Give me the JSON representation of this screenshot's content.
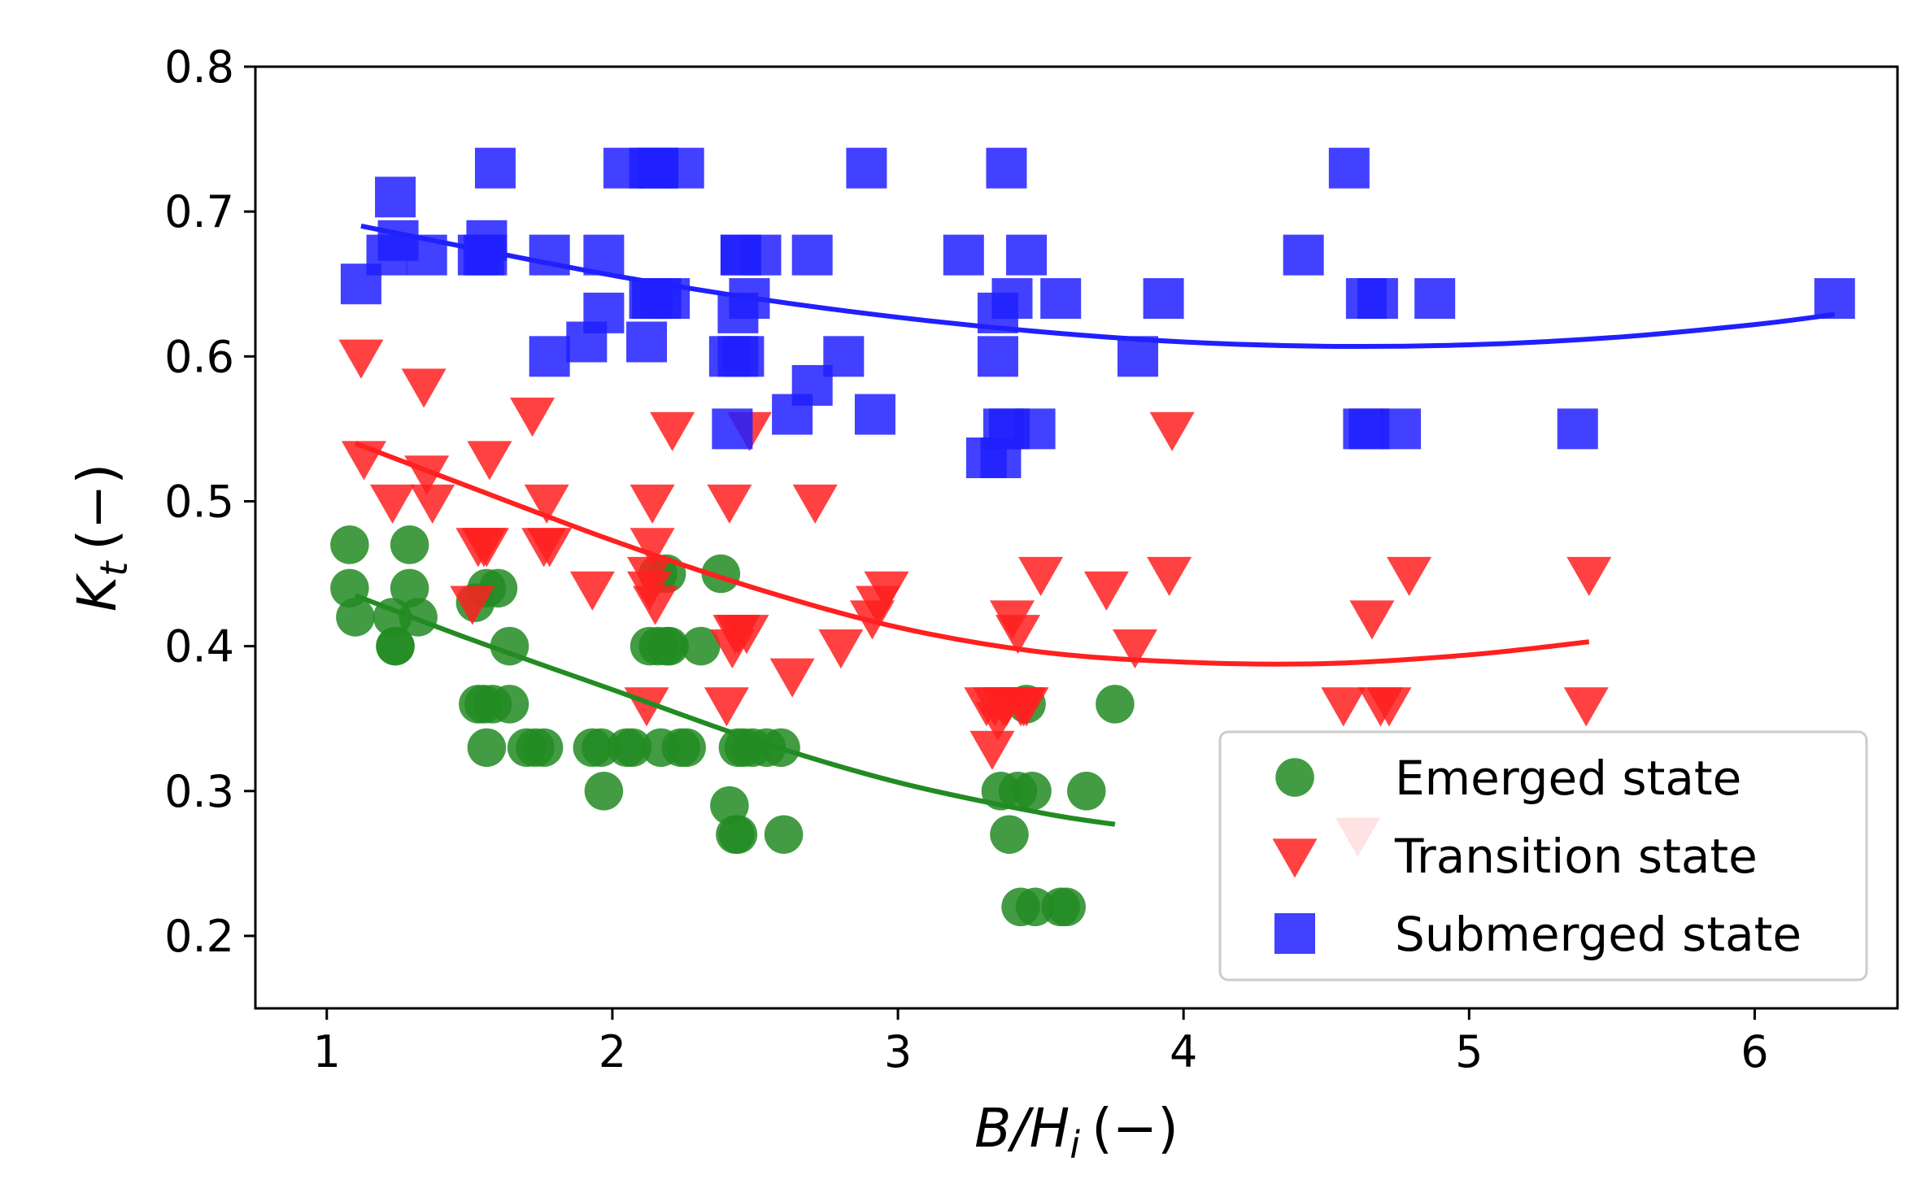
{
  "chart_data": {
    "type": "scatter",
    "title": "",
    "xlabel": "B/H_i (−)",
    "xlabel_base": "B/H",
    "xlabel_sub": "i",
    "xlabel_unit": "(−)",
    "ylabel": "K_t (−)",
    "ylabel_base": "K",
    "ylabel_sub": "t",
    "ylabel_unit": "(−)",
    "xlim": [
      0.75,
      6.5
    ],
    "ylim": [
      0.15,
      0.8
    ],
    "xticks": [
      1,
      2,
      3,
      4,
      5,
      6
    ],
    "xtick_labels": [
      "1",
      "2",
      "3",
      "4",
      "5",
      "6"
    ],
    "yticks": [
      0.2,
      0.3,
      0.4,
      0.5,
      0.6,
      0.7,
      0.8
    ],
    "ytick_labels": [
      "0.2",
      "0.3",
      "0.4",
      "0.5",
      "0.6",
      "0.7",
      "0.8"
    ],
    "grid": false,
    "legend_position": "bottom-right",
    "series": [
      {
        "name": "Emerged state",
        "marker": "circle",
        "color": "#228B22",
        "x": [
          1.08,
          1.08,
          1.1,
          1.23,
          1.24,
          1.24,
          1.29,
          1.29,
          1.32,
          1.52,
          1.53,
          1.55,
          1.56,
          1.56,
          1.58,
          1.6,
          1.64,
          1.64,
          1.7,
          1.73,
          1.76,
          1.93,
          1.96,
          1.97,
          2.05,
          2.07,
          2.13,
          2.16,
          2.16,
          2.17,
          2.19,
          2.19,
          2.2,
          2.24,
          2.26,
          2.31,
          2.38,
          2.41,
          2.43,
          2.44,
          2.44,
          2.46,
          2.49,
          2.54,
          2.59,
          2.6,
          3.36,
          3.39,
          3.42,
          3.43,
          3.45,
          3.47,
          3.48,
          3.57,
          3.59,
          3.66,
          3.76
        ],
        "y": [
          0.47,
          0.44,
          0.42,
          0.42,
          0.4,
          0.4,
          0.47,
          0.44,
          0.42,
          0.43,
          0.36,
          0.36,
          0.44,
          0.33,
          0.36,
          0.44,
          0.4,
          0.36,
          0.33,
          0.33,
          0.33,
          0.33,
          0.33,
          0.3,
          0.33,
          0.33,
          0.4,
          0.45,
          0.4,
          0.33,
          0.4,
          0.45,
          0.4,
          0.33,
          0.33,
          0.4,
          0.45,
          0.29,
          0.27,
          0.27,
          0.33,
          0.33,
          0.33,
          0.33,
          0.33,
          0.27,
          0.3,
          0.27,
          0.3,
          0.22,
          0.36,
          0.3,
          0.22,
          0.22,
          0.22,
          0.3,
          0.36
        ],
        "fit_x_range": [
          1.1,
          3.76
        ],
        "fit_x": [
          1.1,
          1.5,
          2.0,
          2.5,
          3.0,
          3.5,
          3.76
        ],
        "fit_y": [
          0.435,
          0.405,
          0.37,
          0.335,
          0.306,
          0.285,
          0.277
        ]
      },
      {
        "name": "Transition state",
        "marker": "triangle-down",
        "color": "#FF2020",
        "x": [
          1.12,
          1.13,
          1.23,
          1.34,
          1.35,
          1.37,
          1.51,
          1.53,
          1.55,
          1.56,
          1.57,
          1.72,
          1.76,
          1.77,
          1.78,
          1.93,
          2.12,
          2.13,
          2.13,
          2.14,
          2.14,
          2.15,
          2.21,
          2.4,
          2.41,
          2.42,
          2.43,
          2.44,
          2.47,
          2.48,
          2.63,
          2.71,
          2.8,
          2.91,
          2.93,
          2.96,
          3.31,
          3.33,
          3.34,
          3.35,
          3.37,
          3.38,
          3.4,
          3.42,
          3.43,
          3.44,
          3.45,
          3.5,
          3.73,
          3.83,
          3.95,
          3.96,
          4.56,
          4.61,
          4.66,
          4.69,
          4.72,
          4.79,
          5.41,
          5.42
        ],
        "y": [
          0.6,
          0.53,
          0.5,
          0.58,
          0.52,
          0.5,
          0.43,
          0.47,
          0.47,
          0.47,
          0.53,
          0.56,
          0.47,
          0.5,
          0.47,
          0.44,
          0.36,
          0.44,
          0.45,
          0.47,
          0.5,
          0.43,
          0.55,
          0.36,
          0.5,
          0.4,
          0.41,
          0.41,
          0.41,
          0.55,
          0.38,
          0.5,
          0.4,
          0.42,
          0.43,
          0.44,
          0.36,
          0.33,
          0.36,
          0.35,
          0.36,
          0.36,
          0.42,
          0.41,
          0.36,
          0.36,
          0.36,
          0.45,
          0.44,
          0.4,
          0.45,
          0.55,
          0.36,
          0.27,
          0.42,
          0.36,
          0.36,
          0.45,
          0.36,
          0.45
        ],
        "fit_x_range": [
          1.1,
          5.42
        ],
        "fit_x": [
          1.1,
          1.5,
          2.0,
          2.5,
          3.0,
          3.5,
          4.0,
          4.5,
          5.0,
          5.42
        ],
        "fit_y": [
          0.54,
          0.51,
          0.473,
          0.44,
          0.413,
          0.396,
          0.389,
          0.388,
          0.394,
          0.403
        ]
      },
      {
        "name": "Submerged state",
        "marker": "square",
        "color": "#2020FF",
        "x": [
          1.12,
          1.21,
          1.24,
          1.25,
          1.35,
          1.53,
          1.55,
          1.56,
          1.56,
          1.59,
          1.78,
          1.78,
          1.91,
          1.97,
          1.97,
          2.04,
          2.12,
          2.13,
          2.13,
          2.14,
          2.16,
          2.16,
          2.17,
          2.2,
          2.25,
          2.41,
          2.42,
          2.44,
          2.44,
          2.45,
          2.45,
          2.46,
          2.48,
          2.52,
          2.63,
          2.7,
          2.7,
          2.81,
          2.89,
          2.92,
          3.23,
          3.31,
          3.35,
          3.35,
          3.36,
          3.37,
          3.38,
          3.39,
          3.4,
          3.45,
          3.48,
          3.57,
          3.84,
          3.93,
          4.42,
          4.58,
          4.63,
          4.64,
          4.65,
          4.68,
          4.76,
          4.88,
          5.38,
          6.28
        ],
        "y": [
          0.65,
          0.67,
          0.71,
          0.68,
          0.67,
          0.67,
          0.67,
          0.67,
          0.68,
          0.73,
          0.6,
          0.67,
          0.61,
          0.63,
          0.67,
          0.73,
          0.61,
          0.64,
          0.73,
          0.64,
          0.73,
          0.73,
          0.64,
          0.64,
          0.73,
          0.6,
          0.55,
          0.6,
          0.63,
          0.67,
          0.67,
          0.6,
          0.64,
          0.67,
          0.56,
          0.58,
          0.67,
          0.6,
          0.73,
          0.56,
          0.67,
          0.53,
          0.63,
          0.6,
          0.53,
          0.55,
          0.73,
          0.55,
          0.64,
          0.67,
          0.55,
          0.64,
          0.6,
          0.64,
          0.67,
          0.73,
          0.55,
          0.64,
          0.55,
          0.64,
          0.55,
          0.64,
          0.55,
          0.64
        ],
        "fit_x_range": [
          1.12,
          6.28
        ],
        "fit_x": [
          1.12,
          1.5,
          2.0,
          2.5,
          3.0,
          3.5,
          4.0,
          4.5,
          5.0,
          5.5,
          6.0,
          6.28
        ],
        "fit_y": [
          0.69,
          0.675,
          0.656,
          0.64,
          0.627,
          0.617,
          0.61,
          0.607,
          0.608,
          0.613,
          0.622,
          0.629
        ]
      }
    ]
  }
}
